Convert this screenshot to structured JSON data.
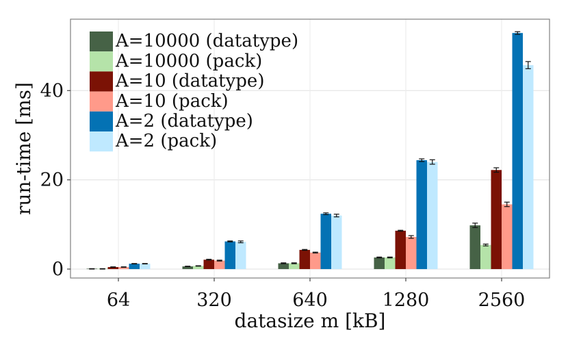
{
  "chart_data": {
    "type": "bar",
    "xlabel": "datasize m [kB]",
    "ylabel": "run-time [ms]",
    "categories": [
      "64",
      "320",
      "640",
      "1280",
      "2560"
    ],
    "ylim": [
      -2,
      56
    ],
    "yticks": [
      0,
      20,
      40
    ],
    "grid": true,
    "legend_position": "top-left",
    "series": [
      {
        "name": "A=10000 (datatype)",
        "color": "#466246",
        "values": [
          0.05,
          0.6,
          1.3,
          2.6,
          9.8
        ],
        "err": [
          0.05,
          0.05,
          0.1,
          0.1,
          0.5
        ]
      },
      {
        "name": "A=10000 (pack)",
        "color": "#b5e3a9",
        "values": [
          0.05,
          0.7,
          1.3,
          2.6,
          5.4
        ],
        "err": [
          0.05,
          0.05,
          0.1,
          0.1,
          0.2
        ]
      },
      {
        "name": "A=10 (datatype)",
        "color": "#7b1205",
        "values": [
          0.45,
          2.1,
          4.3,
          8.6,
          22.2
        ],
        "err": [
          0.05,
          0.1,
          0.1,
          0.1,
          0.5
        ]
      },
      {
        "name": "A=10 (pack)",
        "color": "#ff9a8a",
        "values": [
          0.45,
          1.9,
          3.7,
          7.2,
          14.5
        ],
        "err": [
          0.05,
          0.1,
          0.1,
          0.3,
          0.5
        ]
      },
      {
        "name": "A=2 (datatype)",
        "color": "#0472b4",
        "values": [
          1.2,
          6.2,
          12.4,
          24.4,
          52.9
        ],
        "err": [
          0.05,
          0.1,
          0.2,
          0.3,
          0.3
        ]
      },
      {
        "name": "A=2 (pack)",
        "color": "#bfe9ff",
        "values": [
          1.2,
          6.1,
          12.0,
          24.0,
          45.7
        ],
        "err": [
          0.05,
          0.2,
          0.3,
          0.5,
          0.8
        ]
      }
    ]
  }
}
